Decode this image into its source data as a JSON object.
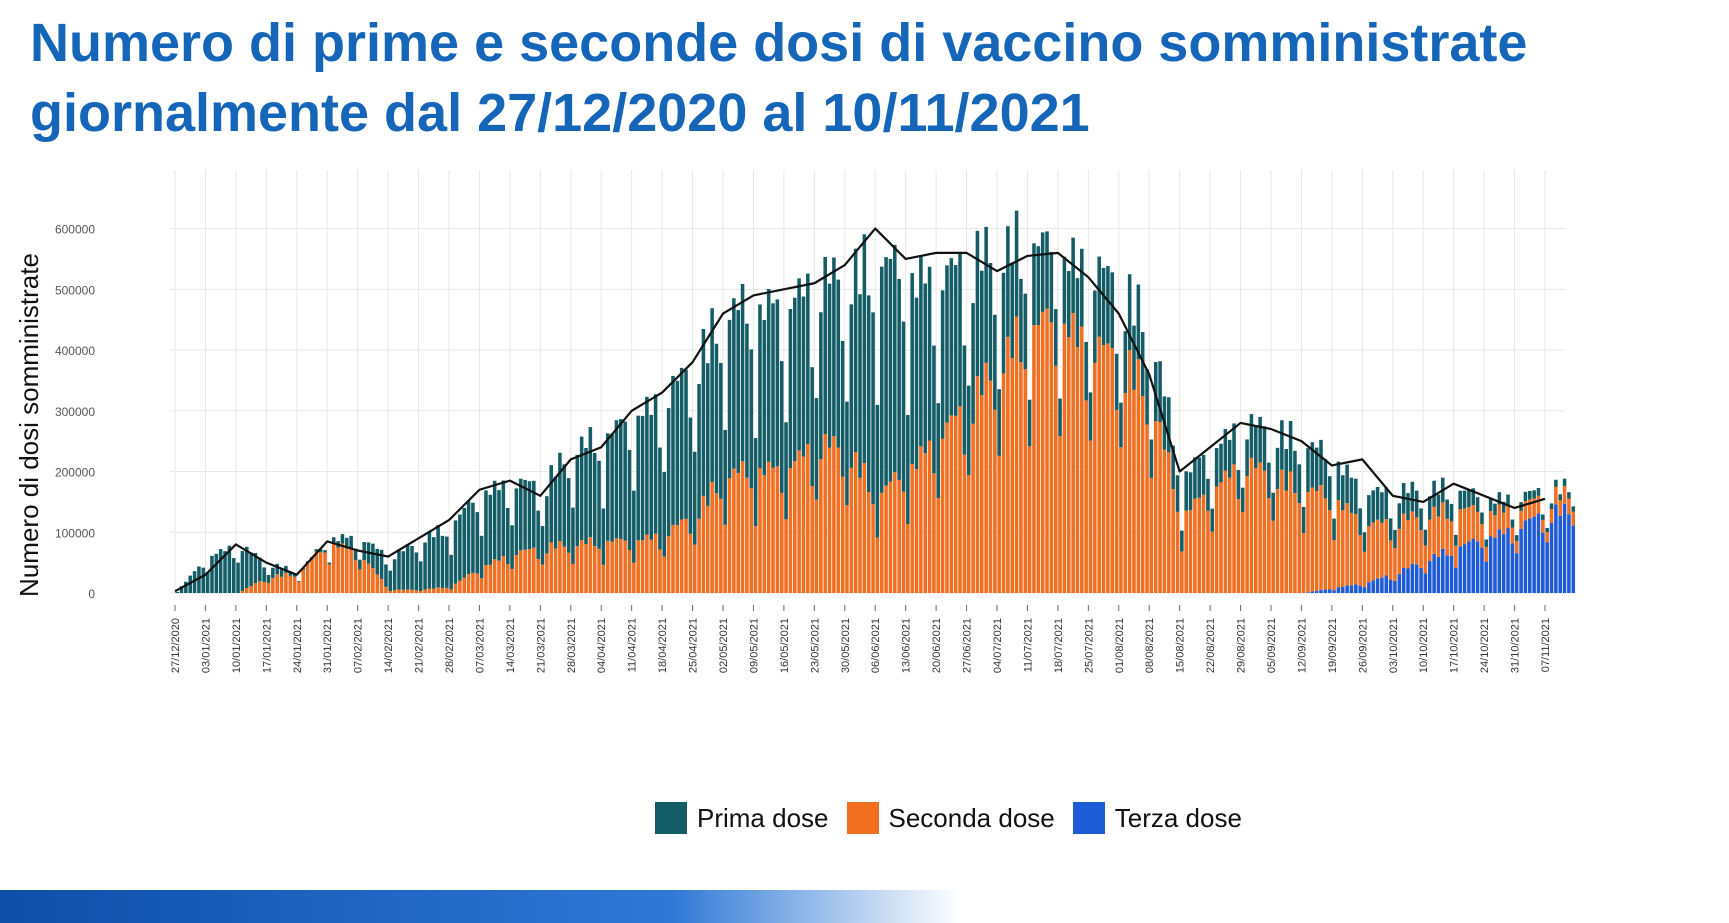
{
  "title_lines": [
    "Numero di prime e seconde dosi di vaccino somministrate",
    "giornalmente dal 27/12/2020 al 10/11/2021"
  ],
  "colors": {
    "title": "#1565b8",
    "prima": "#145d66",
    "seconda": "#f26f22",
    "terza": "#1e5bd6",
    "trend": "#111111",
    "grid": "#e6e6e6"
  },
  "chart_data": {
    "type": "bar",
    "stacked": true,
    "title": "",
    "xlabel": "",
    "ylabel": "Numero di dosi somministrate",
    "ylim": [
      0,
      680000
    ],
    "yticks": [
      0,
      100000,
      200000,
      300000,
      400000,
      500000,
      600000
    ],
    "ytick_labels": [
      "0",
      "100000",
      "200000",
      "300000",
      "400000",
      "500000",
      "600000"
    ],
    "x_tick_labels": [
      "27/12/2020",
      "03/01/2021",
      "10/01/2021",
      "17/01/2021",
      "24/01/2021",
      "31/01/2021",
      "07/02/2021",
      "14/02/2021",
      "21/02/2021",
      "28/02/2021",
      "07/03/2021",
      "14/03/2021",
      "21/03/2021",
      "28/03/2021",
      "04/04/2021",
      "11/04/2021",
      "18/04/2021",
      "25/04/2021",
      "02/05/2021",
      "09/05/2021",
      "16/05/2021",
      "23/05/2021",
      "30/05/2021",
      "06/06/2021",
      "13/06/2021",
      "20/06/2021",
      "27/06/2021",
      "04/07/2021",
      "11/07/2021",
      "18/07/2021",
      "25/07/2021",
      "01/08/2021",
      "08/08/2021",
      "15/08/2021",
      "22/08/2021",
      "29/08/2021",
      "05/09/2021",
      "12/09/2021",
      "19/09/2021",
      "26/09/2021",
      "03/10/2021",
      "10/10/2021",
      "17/10/2021",
      "24/10/2021",
      "31/10/2021",
      "07/11/2021"
    ],
    "x_tick_dates": [
      "2020-12-27",
      "2021-01-03",
      "2021-01-10",
      "2021-01-17",
      "2021-01-24",
      "2021-01-31",
      "2021-02-07",
      "2021-02-14",
      "2021-02-21",
      "2021-02-28",
      "2021-03-07",
      "2021-03-14",
      "2021-03-21",
      "2021-03-28",
      "2021-04-04",
      "2021-04-11",
      "2021-04-18",
      "2021-04-25",
      "2021-05-02",
      "2021-05-09",
      "2021-05-16",
      "2021-05-23",
      "2021-05-30",
      "2021-06-06",
      "2021-06-13",
      "2021-06-20",
      "2021-06-27",
      "2021-07-04",
      "2021-07-11",
      "2021-07-18",
      "2021-07-25",
      "2021-08-01",
      "2021-08-08",
      "2021-08-15",
      "2021-08-22",
      "2021-08-29",
      "2021-09-05",
      "2021-09-12",
      "2021-09-19",
      "2021-09-26",
      "2021-10-03",
      "2021-10-10",
      "2021-10-17",
      "2021-10-24",
      "2021-10-31",
      "2021-11-07"
    ],
    "series": [
      {
        "name": "Prima dose",
        "weekly_avg": [
          3000,
          55000,
          75000,
          20000,
          2000,
          5000,
          25000,
          50000,
          75000,
          95000,
          115000,
          110000,
          95000,
          145000,
          160000,
          190000,
          210000,
          230000,
          250000,
          250000,
          250000,
          250000,
          260000,
          360000,
          300000,
          240000,
          220000,
          170000,
          130000,
          100000,
          120000,
          110000,
          100000,
          60000,
          60000,
          60000,
          70000,
          70000,
          60000,
          50000,
          45000,
          40000,
          30000,
          20000,
          15000,
          10000
        ]
      },
      {
        "name": "Seconda dose",
        "weekly_avg": [
          0,
          0,
          0,
          25000,
          30000,
          80000,
          60000,
          5000,
          5000,
          10000,
          40000,
          60000,
          70000,
          75000,
          80000,
          80000,
          90000,
          120000,
          180000,
          190000,
          190000,
          230000,
          220000,
          150000,
          190000,
          240000,
          290000,
          350000,
          410000,
          420000,
          380000,
          360000,
          300000,
          120000,
          160000,
          200000,
          180000,
          160000,
          140000,
          90000,
          80000,
          70000,
          60000,
          40000,
          30000,
          25000
        ]
      },
      {
        "name": "Terza dose",
        "weekly_avg": [
          0,
          0,
          0,
          0,
          0,
          0,
          0,
          0,
          0,
          0,
          0,
          0,
          0,
          0,
          0,
          0,
          0,
          0,
          0,
          0,
          0,
          0,
          0,
          0,
          0,
          0,
          0,
          0,
          0,
          0,
          0,
          0,
          0,
          0,
          0,
          0,
          0,
          0,
          8000,
          15000,
          30000,
          50000,
          70000,
          85000,
          100000,
          125000
        ]
      }
    ],
    "trend_7day_avg": [
      3000,
      30000,
      80000,
      50000,
      30000,
      85000,
      70000,
      60000,
      90000,
      120000,
      170000,
      185000,
      160000,
      220000,
      240000,
      300000,
      330000,
      380000,
      460000,
      490000,
      500000,
      510000,
      540000,
      600000,
      550000,
      560000,
      560000,
      530000,
      555000,
      560000,
      520000,
      460000,
      360000,
      200000,
      240000,
      280000,
      270000,
      250000,
      210000,
      220000,
      160000,
      150000,
      180000,
      160000,
      140000,
      155000
    ],
    "legend": [
      "Prima dose",
      "Seconda dose",
      "Terza dose"
    ],
    "legend_position": "bottom",
    "grid": true
  }
}
